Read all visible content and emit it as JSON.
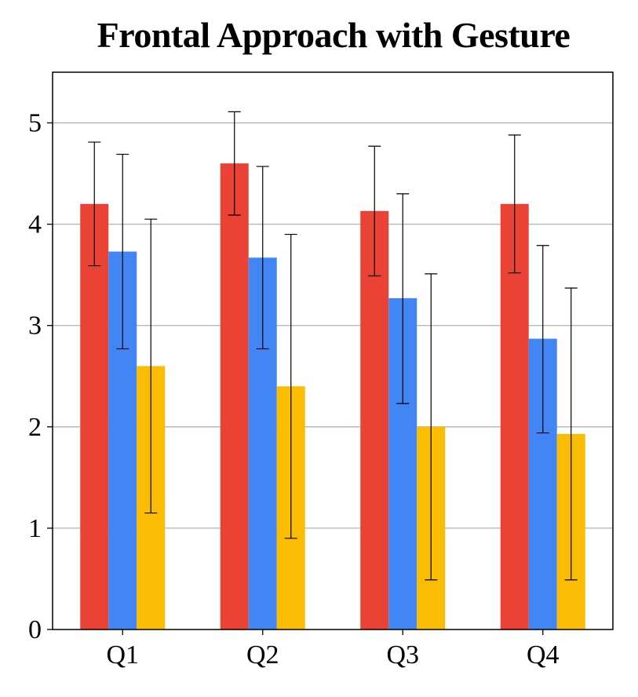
{
  "chart_data": {
    "type": "bar",
    "title": "Frontal Approach with Gesture",
    "xlabel": "",
    "ylabel": "",
    "categories": [
      "Q1",
      "Q2",
      "Q3",
      "Q4"
    ],
    "ylim": [
      0,
      5.5
    ],
    "yticks": [
      0,
      1,
      2,
      3,
      4,
      5
    ],
    "grid": "horizontal",
    "legend": "none",
    "series": [
      {
        "color": "#EA4335",
        "values": [
          4.2,
          4.6,
          4.13,
          4.2
        ],
        "error_low": [
          3.59,
          4.09,
          3.49,
          3.52
        ],
        "error_high": [
          4.81,
          5.11,
          4.77,
          4.88
        ]
      },
      {
        "color": "#4285F4",
        "values": [
          3.73,
          3.67,
          3.27,
          2.87
        ],
        "error_low": [
          2.77,
          2.77,
          2.23,
          1.94
        ],
        "error_high": [
          4.69,
          4.57,
          4.3,
          3.79
        ]
      },
      {
        "color": "#FBBC04",
        "values": [
          2.6,
          2.4,
          2.0,
          1.93
        ],
        "error_low": [
          1.15,
          0.9,
          0.49,
          0.49
        ],
        "error_high": [
          4.05,
          3.9,
          3.51,
          3.37
        ]
      }
    ]
  }
}
